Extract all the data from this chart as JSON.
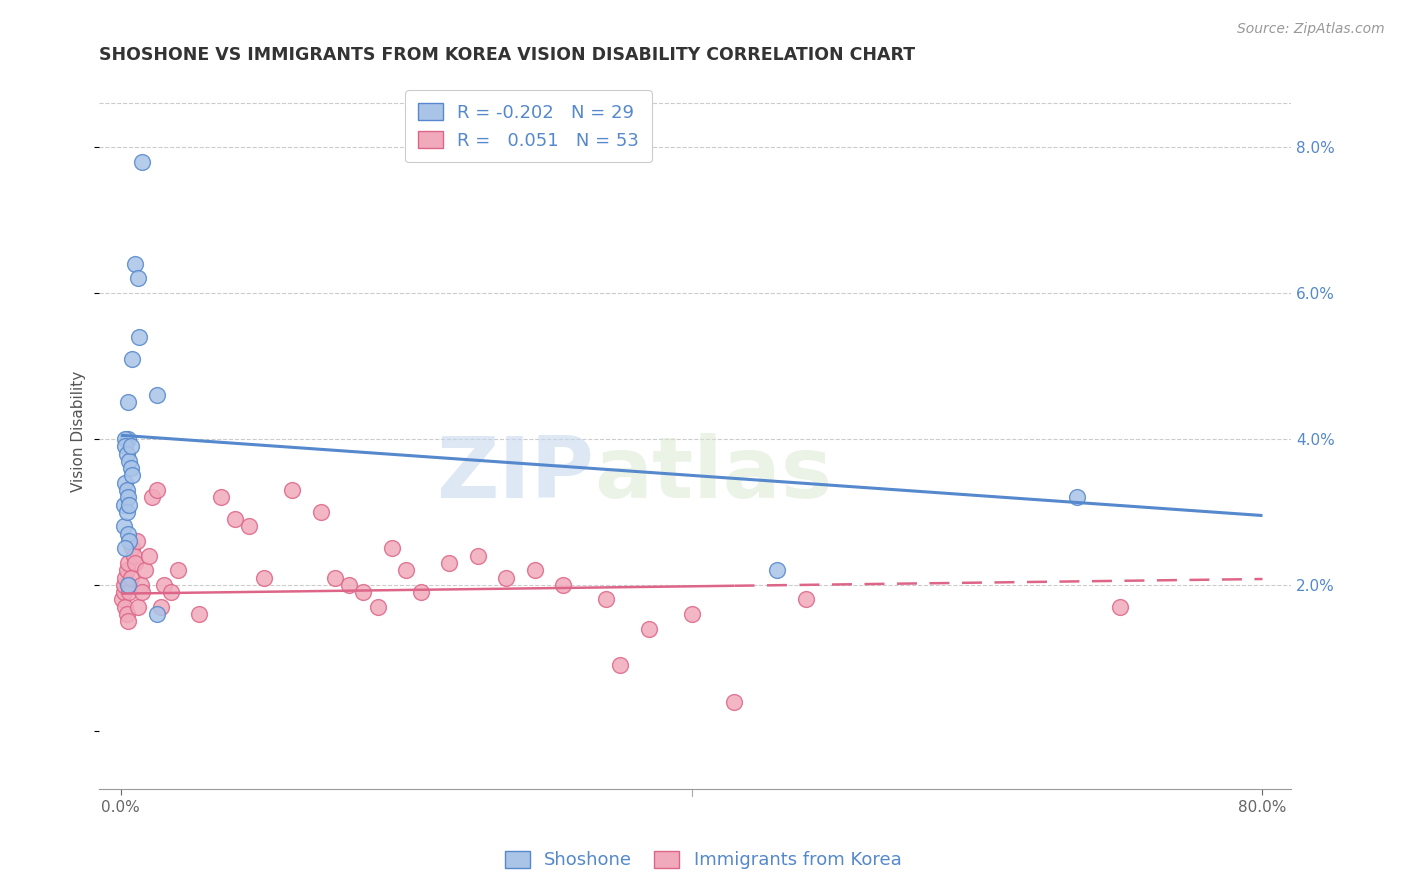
{
  "title": "SHOSHONE VS IMMIGRANTS FROM KOREA VISION DISABILITY CORRELATION CHART",
  "source": "Source: ZipAtlas.com",
  "ylabel": "Vision Disability",
  "right_yticks": [
    2.0,
    4.0,
    6.0,
    8.0
  ],
  "background_color": "#ffffff",
  "watermark_zip": "ZIP",
  "watermark_atlas": "atlas",
  "shoshone_color": "#5588cc",
  "shoshone_fill": "#aac4e8",
  "korea_color": "#dd6688",
  "korea_fill": "#f0aabb",
  "shoshone_R": -0.202,
  "shoshone_N": 29,
  "korea_R": 0.051,
  "korea_N": 53,
  "shoshone_x": [
    1.5,
    1.0,
    1.2,
    1.3,
    0.8,
    2.5,
    0.5,
    0.5,
    0.3,
    0.3,
    0.4,
    0.6,
    0.7,
    0.3,
    0.4,
    0.2,
    0.2,
    0.5,
    0.6,
    0.3,
    0.7,
    0.8,
    0.5,
    0.4,
    0.6,
    0.5,
    46.0,
    2.5,
    67.0
  ],
  "shoshone_y": [
    7.8,
    6.4,
    6.2,
    5.4,
    5.1,
    4.6,
    4.5,
    4.0,
    4.0,
    3.9,
    3.8,
    3.7,
    3.6,
    3.4,
    3.3,
    3.1,
    2.8,
    2.7,
    2.6,
    2.5,
    3.9,
    3.5,
    3.2,
    3.0,
    3.1,
    2.0,
    2.2,
    1.6,
    3.2
  ],
  "korea_x": [
    0.1,
    0.2,
    0.2,
    0.3,
    0.3,
    0.4,
    0.4,
    0.5,
    0.5,
    0.6,
    0.6,
    0.7,
    0.8,
    0.9,
    1.0,
    1.1,
    1.2,
    1.4,
    1.5,
    1.7,
    2.0,
    2.2,
    2.5,
    2.8,
    3.0,
    3.5,
    4.0,
    5.5,
    7.0,
    8.0,
    9.0,
    10.0,
    12.0,
    14.0,
    15.0,
    16.0,
    17.0,
    18.0,
    19.0,
    20.0,
    21.0,
    23.0,
    25.0,
    27.0,
    29.0,
    31.0,
    34.0,
    35.0,
    37.0,
    40.0,
    43.0,
    48.0,
    70.0
  ],
  "korea_y": [
    1.8,
    1.9,
    2.0,
    1.7,
    2.1,
    1.6,
    2.2,
    1.5,
    2.3,
    2.0,
    1.9,
    2.1,
    2.5,
    2.4,
    2.3,
    2.6,
    1.7,
    2.0,
    1.9,
    2.2,
    2.4,
    3.2,
    3.3,
    1.7,
    2.0,
    1.9,
    2.2,
    1.6,
    3.2,
    2.9,
    2.8,
    2.1,
    3.3,
    3.0,
    2.1,
    2.0,
    1.9,
    1.7,
    2.5,
    2.2,
    1.9,
    2.3,
    2.4,
    2.1,
    2.2,
    2.0,
    1.8,
    0.9,
    1.4,
    1.6,
    0.4,
    1.8,
    1.7
  ],
  "shoshone_trend_x0": 0,
  "shoshone_trend_x1": 80,
  "shoshone_trend_y0": 4.05,
  "shoshone_trend_y1": 2.95,
  "korea_trend_x0": 0,
  "korea_trend_solid_end": 43,
  "korea_trend_x1": 80,
  "korea_trend_y0": 1.88,
  "korea_trend_y1": 2.08,
  "xlim": [
    -1.5,
    82
  ],
  "ylim": [
    -0.8,
    9.0
  ],
  "title_fontsize": 12.5,
  "axis_label_fontsize": 11,
  "tick_fontsize": 11,
  "legend_fontsize": 13,
  "source_fontsize": 10
}
